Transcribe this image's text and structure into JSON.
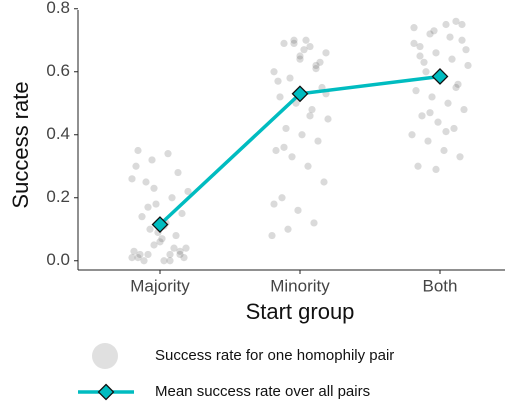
{
  "chart_data": {
    "type": "line",
    "xlabel": "Start group",
    "ylabel": "Success rate",
    "categories": [
      "Majority",
      "Minority",
      "Both"
    ],
    "ylim": [
      -0.03,
      0.81
    ],
    "yticks": [
      {
        "value": 0,
        "label": "0.0"
      },
      0.2,
      0.4,
      0.6,
      0.8
    ],
    "grid": false,
    "series": [
      {
        "name": "Success rate for one homophily pair",
        "color": "#555555",
        "kind": "points",
        "values": [
          [
            0.01,
            0.02,
            0.0,
            0.03,
            0.01,
            0.05,
            0.02,
            0.04,
            0.0,
            0.06,
            0.08,
            0.03,
            0.1,
            0.12,
            0.15,
            0.02,
            0.18,
            0.2,
            0.22,
            0.25,
            0.07,
            0.28,
            0.3,
            0.32,
            0.34,
            0.01,
            0.14,
            0.09,
            0.04,
            0.26,
            0.17,
            0.11,
            0.02,
            0.35,
            0.23,
            0.0
          ],
          [
            0.7,
            0.68,
            0.66,
            0.69,
            0.64,
            0.62,
            0.6,
            0.58,
            0.7,
            0.55,
            0.52,
            0.5,
            0.48,
            0.45,
            0.42,
            0.4,
            0.38,
            0.35,
            0.33,
            0.3,
            0.25,
            0.2,
            0.16,
            0.12,
            0.08,
            0.1,
            0.67,
            0.63,
            0.57,
            0.69,
            0.46,
            0.53,
            0.36,
            0.65,
            0.61,
            0.18
          ],
          [
            0.76,
            0.74,
            0.72,
            0.75,
            0.7,
            0.68,
            0.66,
            0.64,
            0.62,
            0.6,
            0.58,
            0.56,
            0.54,
            0.52,
            0.5,
            0.48,
            0.46,
            0.44,
            0.42,
            0.4,
            0.38,
            0.35,
            0.33,
            0.3,
            0.73,
            0.71,
            0.67,
            0.63,
            0.59,
            0.55,
            0.69,
            0.47,
            0.41,
            0.75,
            0.65,
            0.29
          ]
        ]
      },
      {
        "name": "Mean success rate over all pairs",
        "color": "#00bcc0",
        "kind": "line",
        "values": [
          0.115,
          0.53,
          0.585
        ]
      }
    ]
  }
}
